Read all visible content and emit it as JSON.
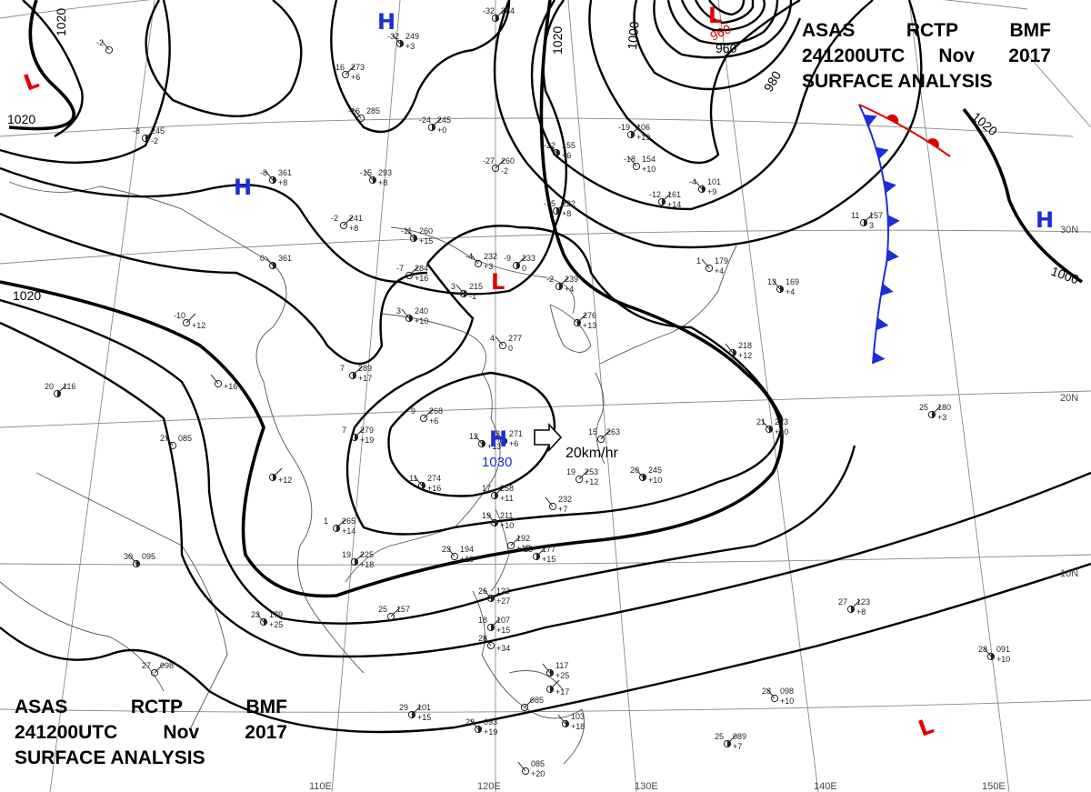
{
  "title": {
    "line1": [
      "ASAS",
      "RCTP",
      "BMF"
    ],
    "line2": [
      "241200UTC",
      "Nov",
      "2017"
    ],
    "line3": "SURFACE ANALYSIS"
  },
  "colors": {
    "high": "#1a2fd6",
    "low": "#e00000",
    "cold_front": "#1a2fd6",
    "warm_front": "#e00000",
    "isobar": "#000000"
  },
  "latitude_labels": [
    "30N",
    "20N",
    "10N"
  ],
  "longitude_labels": [
    "110E",
    "120E",
    "130E",
    "140E",
    "150E"
  ],
  "isobar_labels": [
    "1020",
    "1020",
    "1020",
    "1020",
    "1020",
    "1000",
    "1000",
    "980",
    "960"
  ],
  "pressure_centers": [
    {
      "type": "H",
      "value": ""
    },
    {
      "type": "H",
      "value": ""
    },
    {
      "type": "H",
      "value": "1030"
    },
    {
      "type": "H",
      "value": ""
    },
    {
      "type": "L",
      "value": ""
    },
    {
      "type": "L",
      "value": ""
    },
    {
      "type": "L",
      "value": ""
    },
    {
      "type": "L",
      "value": ""
    }
  ],
  "motion": {
    "icon": "motion-arrow-icon",
    "speed": "20km/hr"
  },
  "fronts": [
    {
      "type": "cold",
      "icon": "cold-front-triangle-icon"
    },
    {
      "type": "warm",
      "icon": "warm-front-semicircle-icon"
    }
  ],
  "stations": [
    {
      "t": "-2",
      "p": "",
      "dp": ""
    },
    {
      "t": "-8",
      "p": "245",
      "dp": "-2"
    },
    {
      "t": "-8",
      "p": "361",
      "dp": "+8"
    },
    {
      "t": "-16",
      "p": "273",
      "dp": "+6"
    },
    {
      "t": "-32",
      "p": "249",
      "dp": "+3"
    },
    {
      "t": "-32",
      "p": "264",
      "dp": ""
    },
    {
      "t": "-16",
      "p": "285",
      "dp": ""
    },
    {
      "t": "-24",
      "p": "245",
      "dp": "+0"
    },
    {
      "t": "-15",
      "p": "293",
      "dp": "+8"
    },
    {
      "t": "-27",
      "p": "260",
      "dp": "-2"
    },
    {
      "t": "-22",
      "p": "155",
      "dp": "+6"
    },
    {
      "t": "-19",
      "p": "106",
      "dp": "+19"
    },
    {
      "t": "-18",
      "p": "154",
      "dp": "+10"
    },
    {
      "t": "-12",
      "p": "161",
      "dp": "+14"
    },
    {
      "t": "-4",
      "p": "101",
      "dp": "+9"
    },
    {
      "t": "-2",
      "p": "241",
      "dp": "+8"
    },
    {
      "t": "-11",
      "p": "260",
      "dp": "+15"
    },
    {
      "t": "-15",
      "p": "222",
      "dp": "+8"
    },
    {
      "t": "-4",
      "p": "232",
      "dp": "+3"
    },
    {
      "t": "-9",
      "p": "233",
      "dp": "0"
    },
    {
      "t": "0",
      "p": "361",
      "dp": ""
    },
    {
      "t": "-7",
      "p": "284",
      "dp": "+16"
    },
    {
      "t": "3",
      "p": "215",
      "dp": "-1"
    },
    {
      "t": "-2",
      "p": "239",
      "dp": "+4"
    },
    {
      "t": "1",
      "p": "179",
      "dp": "+4"
    },
    {
      "t": "11",
      "p": "157",
      "dp": "3"
    },
    {
      "t": "13",
      "p": "169",
      "dp": "+4"
    },
    {
      "t": "-10",
      "p": "",
      "dp": "+12"
    },
    {
      "t": "3",
      "p": "240",
      "dp": "+10"
    },
    {
      "t": "",
      "p": "276",
      "dp": "+13"
    },
    {
      "t": "4",
      "p": "277",
      "dp": "0"
    },
    {
      "t": "7",
      "p": "289",
      "dp": "+17"
    },
    {
      "t": "",
      "p": "218",
      "dp": "+12"
    },
    {
      "t": "9",
      "p": "268",
      "dp": "+6"
    },
    {
      "t": "12",
      "p": "",
      "dp": "+13"
    },
    {
      "t": "20",
      "p": "116",
      "dp": ""
    },
    {
      "t": "",
      "p": "",
      "dp": "+16"
    },
    {
      "t": "7",
      "p": "279",
      "dp": "+19"
    },
    {
      "t": "12",
      "p": "271",
      "dp": "+6"
    },
    {
      "t": "15",
      "p": "263",
      "dp": ""
    },
    {
      "t": "21",
      "p": "223",
      "dp": "+10"
    },
    {
      "t": "25",
      "p": "180",
      "dp": "+3"
    },
    {
      "t": "27",
      "p": "085",
      "dp": ""
    },
    {
      "t": "",
      "p": "",
      "dp": "+12"
    },
    {
      "t": "11",
      "p": "274",
      "dp": "+16"
    },
    {
      "t": "19",
      "p": "253",
      "dp": "+12"
    },
    {
      "t": "20",
      "p": "245",
      "dp": "+10"
    },
    {
      "t": "17",
      "p": "258",
      "dp": "+11"
    },
    {
      "t": "",
      "p": "232",
      "dp": "+7"
    },
    {
      "t": "1",
      "p": "265",
      "dp": "+14"
    },
    {
      "t": "19",
      "p": "211",
      "dp": "+10"
    },
    {
      "t": "",
      "p": "192",
      "dp": "+15"
    },
    {
      "t": "30",
      "p": "095",
      "dp": ""
    },
    {
      "t": "19",
      "p": "225",
      "dp": "+18"
    },
    {
      "t": "23",
      "p": "194",
      "dp": "+19"
    },
    {
      "t": "25",
      "p": "177",
      "dp": "+15"
    },
    {
      "t": "26",
      "p": "122",
      "dp": "+27"
    },
    {
      "t": "25",
      "p": "157",
      "dp": ""
    },
    {
      "t": "23",
      "p": "179",
      "dp": "+25"
    },
    {
      "t": "18",
      "p": "107",
      "dp": "+15"
    },
    {
      "t": "28",
      "p": "",
      "dp": "+34"
    },
    {
      "t": "27",
      "p": "123",
      "dp": "+8"
    },
    {
      "t": "28",
      "p": "091",
      "dp": "+10"
    },
    {
      "t": "27",
      "p": "098",
      "dp": ""
    },
    {
      "t": "",
      "p": "117",
      "dp": "+25"
    },
    {
      "t": "",
      "p": "",
      "dp": "+17"
    },
    {
      "t": "28",
      "p": "098",
      "dp": "+10"
    },
    {
      "t": "29",
      "p": "101",
      "dp": "+15"
    },
    {
      "t": "29",
      "p": "093",
      "dp": "+19"
    },
    {
      "t": "",
      "p": "085",
      "dp": ""
    },
    {
      "t": "",
      "p": "103",
      "dp": "+18"
    },
    {
      "t": "25",
      "p": "089",
      "dp": "+7"
    },
    {
      "t": "",
      "p": "085",
      "dp": "+20"
    }
  ]
}
